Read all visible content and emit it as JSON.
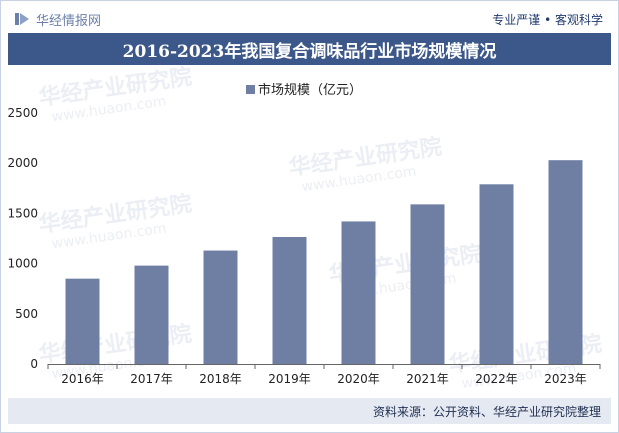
{
  "header": {
    "brand_name": "华经情报网",
    "slogan": "专业严谨 • 客观科学"
  },
  "footer": {
    "source": "资料来源：公开资料、华经产业研究院整理"
  },
  "watermark": {
    "text": "华经产业研究院",
    "url_text": "www.huaon.com"
  },
  "colors": {
    "bar": "#6f7fa3",
    "title_bg": "#3c5789",
    "brand": "#6b7fa8"
  },
  "chart_data": {
    "type": "bar",
    "title": "2016-2023年我国复合调味品行业市场规模情况",
    "legend": [
      "市场规模（亿元）"
    ],
    "legend_position": "top-center",
    "categories": [
      "2016年",
      "2017年",
      "2018年",
      "2019年",
      "2020年",
      "2021年",
      "2022年",
      "2023年"
    ],
    "series": [
      {
        "name": "市场规模（亿元）",
        "values": [
          850,
          980,
          1130,
          1265,
          1420,
          1590,
          1790,
          2030
        ]
      }
    ],
    "ylim": [
      0,
      2500
    ],
    "yticks": [
      0,
      500,
      1000,
      1500,
      2000,
      2500
    ],
    "xlabel": "",
    "ylabel": "",
    "grid": false
  }
}
